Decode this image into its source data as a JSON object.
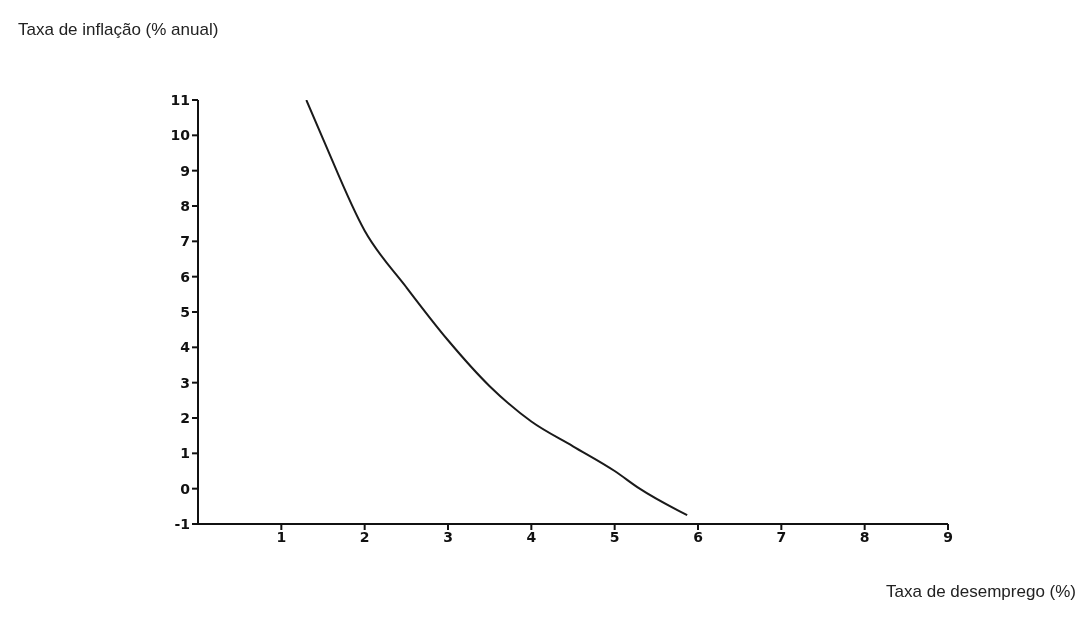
{
  "chart_data": {
    "type": "line",
    "ylabel": "Taxa de inflação (% anual)",
    "xlabel": "Taxa de desemprego (%)",
    "x": [
      1.3,
      1.5,
      2,
      2.5,
      3,
      3.5,
      4,
      4.5,
      5,
      5.3,
      5.87
    ],
    "series": [
      {
        "color": "#1a1a1a",
        "values": [
          11,
          9.9,
          7.3,
          5.7,
          4.2,
          2.9,
          1.9,
          1.2,
          0.5,
          0,
          -0.75
        ]
      }
    ],
    "xlim": [
      0,
      9
    ],
    "xticks": [
      1,
      2,
      3,
      4,
      5,
      6,
      7,
      8,
      9
    ],
    "ylim": [
      -1,
      11
    ],
    "yticks": [
      -1,
      0,
      1,
      2,
      3,
      4,
      5,
      6,
      7,
      8,
      9,
      10,
      11
    ],
    "grid": false,
    "legend": false,
    "marker": "none",
    "line_style": "solid"
  }
}
